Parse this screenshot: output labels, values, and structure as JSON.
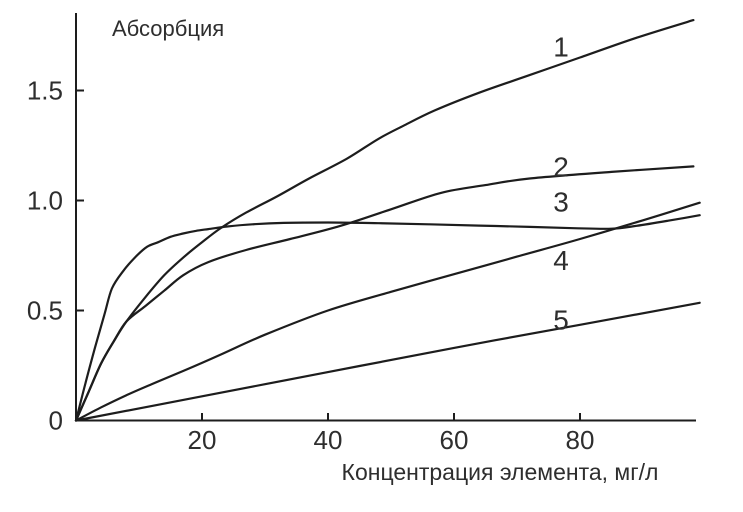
{
  "chart_data": {
    "type": "line",
    "title": "Абсорбция",
    "xlabel": "Концентрация элемента, мг/л",
    "ylabel": "",
    "xlim": [
      0,
      100
    ],
    "ylim": [
      0,
      1.85
    ],
    "grid": false,
    "legend": "inline-numeric-labels-right-of-curves",
    "line_color": "#1d1d1d",
    "text_color": "#2e2e2e",
    "background": "#ffffff",
    "xticks": [
      {
        "value": 20,
        "label": "20"
      },
      {
        "value": 40,
        "label": "40"
      },
      {
        "value": 60,
        "label": "60"
      },
      {
        "value": 80,
        "label": "80"
      }
    ],
    "yticks": [
      {
        "value": 0,
        "label": "0"
      },
      {
        "value": 0.5,
        "label": "0.5"
      },
      {
        "value": 1.0,
        "label": "1.0"
      },
      {
        "value": 1.5,
        "label": "1.5"
      }
    ],
    "series": [
      {
        "name": "curve-1",
        "label": "1",
        "label_pos": {
          "x": 77,
          "y": 1.7
        },
        "points": [
          [
            0,
            0
          ],
          [
            2,
            0.13
          ],
          [
            4,
            0.26
          ],
          [
            6,
            0.36
          ],
          [
            8,
            0.45
          ],
          [
            11,
            0.56
          ],
          [
            14,
            0.66
          ],
          [
            17,
            0.74
          ],
          [
            20,
            0.81
          ],
          [
            23,
            0.875
          ],
          [
            27,
            0.945
          ],
          [
            32,
            1.02
          ],
          [
            37,
            1.1
          ],
          [
            43,
            1.19
          ],
          [
            48,
            1.28
          ],
          [
            52,
            1.34
          ],
          [
            57,
            1.41
          ],
          [
            64,
            1.49
          ],
          [
            72,
            1.57
          ],
          [
            80,
            1.65
          ],
          [
            89,
            1.74
          ],
          [
            98,
            1.82
          ]
        ]
      },
      {
        "name": "curve-2",
        "label": "2",
        "label_pos": {
          "x": 77,
          "y": 1.155
        },
        "points": [
          [
            0,
            0
          ],
          [
            2,
            0.13
          ],
          [
            4,
            0.26
          ],
          [
            6,
            0.36
          ],
          [
            8,
            0.45
          ],
          [
            11,
            0.52
          ],
          [
            14,
            0.59
          ],
          [
            17,
            0.66
          ],
          [
            21,
            0.72
          ],
          [
            27,
            0.775
          ],
          [
            34,
            0.825
          ],
          [
            42,
            0.885
          ],
          [
            50,
            0.96
          ],
          [
            58,
            1.035
          ],
          [
            65,
            1.07
          ],
          [
            72,
            1.1
          ],
          [
            85,
            1.13
          ],
          [
            98,
            1.155
          ]
        ]
      },
      {
        "name": "curve-3",
        "label": "3",
        "label_pos": {
          "x": 77,
          "y": 0.995
        },
        "points": [
          [
            0,
            0
          ],
          [
            1.5,
            0.17
          ],
          [
            3,
            0.33
          ],
          [
            4.5,
            0.48
          ],
          [
            5.7,
            0.6
          ],
          [
            7.5,
            0.68
          ],
          [
            9.5,
            0.745
          ],
          [
            11.3,
            0.79
          ],
          [
            13,
            0.81
          ],
          [
            15,
            0.835
          ],
          [
            17,
            0.85
          ],
          [
            19,
            0.862
          ],
          [
            21,
            0.87
          ],
          [
            24,
            0.882
          ],
          [
            28,
            0.892
          ],
          [
            33,
            0.898
          ],
          [
            40,
            0.9
          ],
          [
            48,
            0.897
          ],
          [
            56,
            0.892
          ],
          [
            64,
            0.886
          ],
          [
            72,
            0.88
          ],
          [
            79,
            0.874
          ],
          [
            85,
            0.872
          ],
          [
            89,
            0.885
          ],
          [
            94,
            0.908
          ],
          [
            99,
            0.933
          ]
        ]
      },
      {
        "name": "curve-4",
        "label": "4",
        "label_pos": {
          "x": 77,
          "y": 0.73
        },
        "points": [
          [
            0,
            0
          ],
          [
            4,
            0.06
          ],
          [
            8,
            0.115
          ],
          [
            12,
            0.165
          ],
          [
            17,
            0.225
          ],
          [
            23,
            0.3
          ],
          [
            30,
            0.39
          ],
          [
            40,
            0.5
          ],
          [
            50,
            0.585
          ],
          [
            60,
            0.665
          ],
          [
            70,
            0.745
          ],
          [
            80,
            0.825
          ],
          [
            90,
            0.91
          ],
          [
            99,
            0.99
          ]
        ]
      },
      {
        "name": "curve-5",
        "label": "5",
        "label_pos": {
          "x": 77,
          "y": 0.46
        },
        "points": [
          [
            0,
            0
          ],
          [
            20,
            0.11
          ],
          [
            40,
            0.22
          ],
          [
            60,
            0.33
          ],
          [
            80,
            0.435
          ],
          [
            99,
            0.535
          ]
        ]
      }
    ]
  }
}
